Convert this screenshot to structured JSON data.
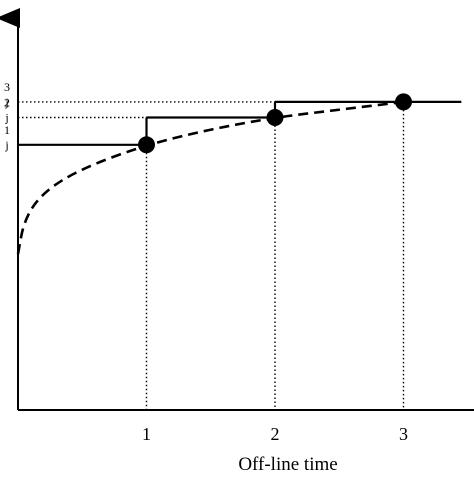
{
  "chart_data": {
    "type": "line",
    "xlabel": "Off-line time",
    "ylabel": "",
    "title": "",
    "x_ticks": [
      "1",
      "2",
      "3"
    ],
    "y_ticks": [
      {
        "sup": "3",
        "sub": "j"
      },
      {
        "sup": "2",
        "sub": "j"
      },
      {
        "sup": "1",
        "sub": "j"
      }
    ],
    "xlim": [
      0,
      3.5
    ],
    "ylim": [
      0,
      1.0
    ],
    "series": [
      {
        "style": "dashed",
        "curve": [
          [
            0.0,
            0.4
          ],
          [
            0.05,
            0.49
          ],
          [
            0.2,
            0.56
          ],
          [
            0.5,
            0.62
          ],
          [
            1.0,
            0.68
          ],
          [
            1.5,
            0.72
          ],
          [
            2.0,
            0.75
          ],
          [
            2.5,
            0.77
          ],
          [
            3.0,
            0.79
          ]
        ]
      }
    ],
    "points": [
      {
        "x": 1,
        "y": 0.68
      },
      {
        "x": 2,
        "y": 0.75
      },
      {
        "x": 3,
        "y": 0.79
      }
    ],
    "steps": [
      {
        "x_from": 0,
        "x_to": 1,
        "y": 0.68,
        "riser_from": 0.68,
        "riser_to": 0.75
      },
      {
        "x_from": 1,
        "x_to": 2,
        "y": 0.75,
        "riser_from": 0.75,
        "riser_to": 0.79
      },
      {
        "x_from": 2,
        "x_to": 3.45,
        "y": 0.79
      }
    ],
    "dotted_levels": [
      {
        "x_to": 2,
        "y": 0.75
      },
      {
        "x_to": 3,
        "y": 0.79
      }
    ],
    "grid": false,
    "legend": "none"
  }
}
